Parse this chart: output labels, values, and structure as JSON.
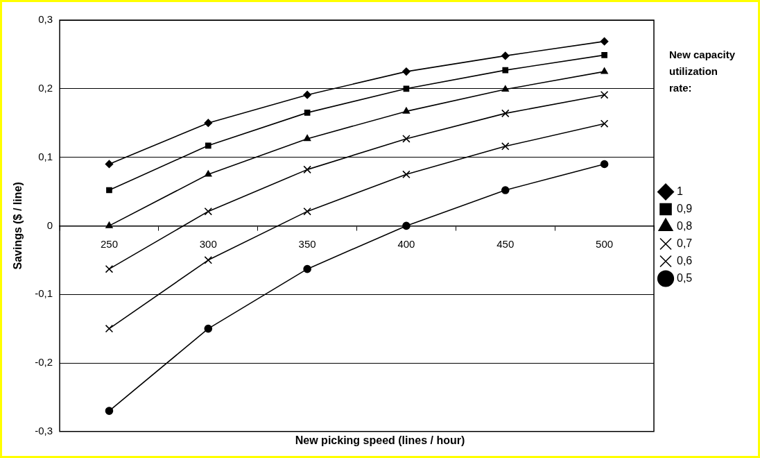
{
  "chart_data": {
    "type": "line",
    "xlabel": "New picking speed (lines / hour)",
    "ylabel": "Savings ($ / line)",
    "legend_title": "New capacity utilization rate:",
    "categories": [
      "250",
      "300",
      "350",
      "400",
      "450",
      "500"
    ],
    "series": [
      {
        "name": "1",
        "color": "#000000",
        "marker": "diamond",
        "values": [
          0.09,
          0.15,
          0.191,
          0.225,
          0.248,
          0.269
        ]
      },
      {
        "name": "0,9",
        "color": "#000000",
        "marker": "square",
        "values": [
          0.052,
          0.117,
          0.165,
          0.2,
          0.227,
          0.249
        ]
      },
      {
        "name": "0,8",
        "color": "#000000",
        "marker": "triangle",
        "values": [
          0,
          0.075,
          0.127,
          0.167,
          0.199,
          0.225
        ]
      },
      {
        "name": "0,7",
        "color": "#000000",
        "marker": "cross",
        "values": [
          -0.063,
          0.021,
          0.082,
          0.127,
          0.164,
          0.191
        ]
      },
      {
        "name": "0,6",
        "color": "#000000",
        "marker": "cross",
        "values": [
          -0.15,
          -0.05,
          0.021,
          0.075,
          0.116,
          0.149
        ]
      },
      {
        "name": "0,5",
        "color": "#000000",
        "marker": "circle",
        "values": [
          -0.27,
          -0.15,
          -0.063,
          0,
          0.052,
          0.09
        ]
      }
    ],
    "ylim": [
      -0.3,
      0.3
    ],
    "yticks": [
      {
        "value": -0.3,
        "label": "-0,3"
      },
      {
        "value": -0.2,
        "label": "-0,2"
      },
      {
        "value": -0.1,
        "label": "-0,1"
      },
      {
        "value": 0,
        "label": "0"
      },
      {
        "value": 0.1,
        "label": "0,1"
      },
      {
        "value": 0.2,
        "label": "0,2"
      },
      {
        "value": 0.3,
        "label": "0,3"
      }
    ],
    "grid": "y",
    "legend": "right",
    "line_style": "solid"
  }
}
